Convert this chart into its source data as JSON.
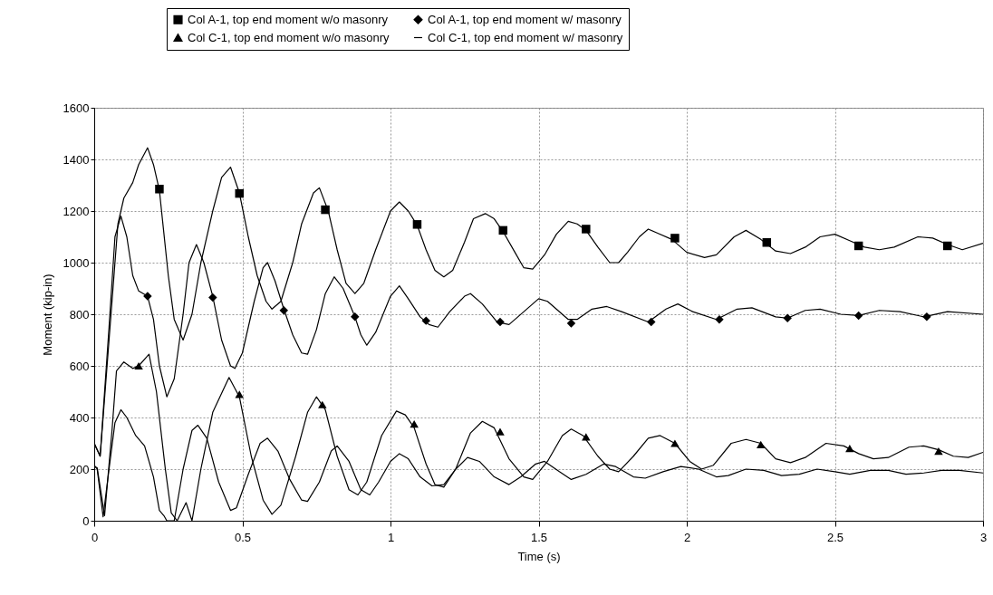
{
  "chart_data": {
    "type": "line",
    "xlabel": "Time (s)",
    "ylabel": "Moment (kip-in)",
    "xlim": [
      0,
      3
    ],
    "ylim": [
      0,
      1600
    ],
    "xticks": [
      0,
      0.5,
      1,
      1.5,
      2,
      2.5,
      3
    ],
    "yticks": [
      0,
      200,
      400,
      600,
      800,
      1000,
      1200,
      1400,
      1600
    ],
    "grid": true,
    "legend": "top",
    "line_style": "solid",
    "series": [
      {
        "name": "Col A-1, top end moment w/o masonry",
        "color": "#000000",
        "x": [
          0,
          0.02,
          0.05,
          0.08,
          0.1,
          0.13,
          0.15,
          0.18,
          0.2,
          0.22,
          0.25,
          0.27,
          0.3,
          0.33,
          0.36,
          0.4,
          0.43,
          0.46,
          0.49,
          0.52,
          0.55,
          0.58,
          0.6,
          0.63,
          0.67,
          0.7,
          0.74,
          0.76,
          0.79,
          0.82,
          0.85,
          0.88,
          0.91,
          0.95,
          1.0,
          1.03,
          1.06,
          1.09,
          1.12,
          1.15,
          1.18,
          1.21,
          1.25,
          1.28,
          1.32,
          1.35,
          1.38,
          1.42,
          1.45,
          1.48,
          1.52,
          1.56,
          1.6,
          1.63,
          1.66,
          1.7,
          1.74,
          1.77,
          1.8,
          1.84,
          1.87,
          1.9,
          1.95,
          2.0,
          2.06,
          2.1,
          2.16,
          2.2,
          2.25,
          2.3,
          2.35,
          2.4,
          2.45,
          2.5,
          2.55,
          2.6,
          2.65,
          2.7,
          2.78,
          2.83,
          2.88,
          2.93,
          3.0
        ],
        "values": [
          300,
          250,
          700,
          1150,
          1250,
          1310,
          1380,
          1445,
          1380,
          1280,
          950,
          780,
          700,
          800,
          1000,
          1200,
          1330,
          1370,
          1270,
          1100,
          950,
          850,
          820,
          850,
          1000,
          1150,
          1270,
          1290,
          1200,
          1050,
          920,
          880,
          920,
          1050,
          1200,
          1235,
          1200,
          1145,
          1050,
          970,
          945,
          970,
          1080,
          1170,
          1190,
          1170,
          1120,
          1040,
          980,
          975,
          1030,
          1110,
          1160,
          1150,
          1125,
          1060,
          1000,
          1000,
          1040,
          1100,
          1130,
          1115,
          1090,
          1040,
          1020,
          1030,
          1100,
          1125,
          1090,
          1045,
          1035,
          1060,
          1100,
          1110,
          1085,
          1060,
          1050,
          1060,
          1100,
          1095,
          1070,
          1050,
          1075
        ]
      },
      {
        "name": "Col A-1, top end moment w/ masonry",
        "color": "#000000",
        "x": [
          0,
          0.02,
          0.05,
          0.07,
          0.09,
          0.11,
          0.13,
          0.15,
          0.18,
          0.2,
          0.22,
          0.245,
          0.27,
          0.3,
          0.32,
          0.345,
          0.37,
          0.4,
          0.43,
          0.46,
          0.475,
          0.5,
          0.54,
          0.57,
          0.585,
          0.61,
          0.64,
          0.67,
          0.7,
          0.72,
          0.75,
          0.78,
          0.81,
          0.84,
          0.88,
          0.9,
          0.92,
          0.95,
          1.0,
          1.03,
          1.06,
          1.1,
          1.13,
          1.16,
          1.2,
          1.25,
          1.27,
          1.31,
          1.36,
          1.4,
          1.43,
          1.5,
          1.53,
          1.6,
          1.63,
          1.68,
          1.73,
          1.78,
          1.87,
          1.93,
          1.97,
          2.02,
          2.1,
          2.17,
          2.22,
          2.3,
          2.34,
          2.4,
          2.45,
          2.52,
          2.58,
          2.65,
          2.72,
          2.8,
          2.88,
          3.0
        ],
        "values": [
          300,
          250,
          750,
          1100,
          1180,
          1100,
          950,
          890,
          870,
          780,
          600,
          480,
          550,
          800,
          1000,
          1070,
          1000,
          870,
          700,
          600,
          590,
          650,
          850,
          980,
          1000,
          930,
          820,
          720,
          650,
          645,
          740,
          880,
          945,
          900,
          790,
          720,
          680,
          730,
          870,
          910,
          860,
          790,
          760,
          750,
          810,
          870,
          880,
          840,
          770,
          760,
          790,
          860,
          850,
          780,
          780,
          820,
          830,
          810,
          770,
          820,
          840,
          810,
          780,
          820,
          825,
          790,
          785,
          815,
          820,
          800,
          795,
          815,
          810,
          790,
          810,
          800
        ]
      },
      {
        "name": "Col C-1, top end moment w/o masonry",
        "color": "#000000",
        "x": [
          0,
          0.01,
          0.035,
          0.06,
          0.075,
          0.1,
          0.13,
          0.15,
          0.185,
          0.21,
          0.24,
          0.26,
          0.28,
          0.31,
          0.33,
          0.36,
          0.4,
          0.455,
          0.49,
          0.53,
          0.57,
          0.6,
          0.63,
          0.68,
          0.72,
          0.75,
          0.78,
          0.82,
          0.86,
          0.89,
          0.92,
          0.97,
          1.02,
          1.05,
          1.08,
          1.12,
          1.15,
          1.18,
          1.22,
          1.27,
          1.31,
          1.35,
          1.4,
          1.45,
          1.48,
          1.53,
          1.58,
          1.61,
          1.65,
          1.7,
          1.74,
          1.77,
          1.82,
          1.87,
          1.91,
          1.96,
          2.01,
          2.05,
          2.09,
          2.15,
          2.2,
          2.25,
          2.3,
          2.35,
          2.4,
          2.47,
          2.53,
          2.58,
          2.63,
          2.68,
          2.75,
          2.8,
          2.85,
          2.9,
          2.95,
          3.0
        ],
        "values": [
          210,
          205,
          20,
          350,
          580,
          615,
          590,
          600,
          645,
          500,
          200,
          30,
          0,
          70,
          0,
          200,
          420,
          555,
          480,
          250,
          80,
          25,
          60,
          250,
          420,
          480,
          430,
          250,
          120,
          100,
          150,
          330,
          425,
          410,
          360,
          220,
          140,
          130,
          200,
          340,
          385,
          360,
          240,
          170,
          160,
          230,
          330,
          355,
          330,
          250,
          200,
          190,
          250,
          320,
          330,
          300,
          230,
          200,
          215,
          300,
          315,
          300,
          240,
          225,
          245,
          300,
          290,
          260,
          240,
          245,
          285,
          290,
          275,
          250,
          245,
          265
        ]
      },
      {
        "name": "Col C-1, top end moment w/ masonry",
        "color": "#000000",
        "x": [
          0,
          0.01,
          0.03,
          0.05,
          0.07,
          0.09,
          0.11,
          0.14,
          0.17,
          0.2,
          0.22,
          0.235,
          0.245,
          0.27,
          0.3,
          0.33,
          0.35,
          0.38,
          0.42,
          0.46,
          0.48,
          0.52,
          0.56,
          0.585,
          0.62,
          0.66,
          0.7,
          0.72,
          0.76,
          0.8,
          0.82,
          0.86,
          0.9,
          0.93,
          0.96,
          1.0,
          1.03,
          1.06,
          1.1,
          1.14,
          1.18,
          1.22,
          1.26,
          1.3,
          1.35,
          1.4,
          1.44,
          1.49,
          1.52,
          1.57,
          1.61,
          1.66,
          1.72,
          1.76,
          1.82,
          1.86,
          1.92,
          1.98,
          2.04,
          2.1,
          2.14,
          2.2,
          2.26,
          2.32,
          2.38,
          2.44,
          2.5,
          2.55,
          2.62,
          2.68,
          2.74,
          2.8,
          2.86,
          2.92,
          3.0
        ],
        "values": [
          215,
          200,
          15,
          200,
          380,
          430,
          400,
          330,
          290,
          170,
          40,
          20,
          0,
          0,
          200,
          350,
          370,
          320,
          150,
          40,
          50,
          180,
          300,
          320,
          270,
          160,
          80,
          75,
          150,
          270,
          290,
          230,
          120,
          100,
          150,
          230,
          260,
          240,
          170,
          135,
          140,
          200,
          245,
          230,
          170,
          140,
          170,
          220,
          230,
          190,
          160,
          180,
          220,
          210,
          170,
          165,
          190,
          210,
          200,
          170,
          175,
          200,
          195,
          175,
          180,
          200,
          190,
          180,
          195,
          195,
          180,
          185,
          195,
          195,
          185
        ]
      },
      {
        "type": "scatter",
        "color": "#000000",
        "marker": "square",
        "x": [
          0.22,
          0.49,
          0.78,
          1.09,
          1.38,
          1.66,
          1.96,
          2.27,
          2.58,
          2.88
        ],
        "values": [
          1285,
          1268,
          1205,
          1148,
          1125,
          1130,
          1095,
          1078,
          1065,
          1065
        ]
      },
      {
        "type": "scatter",
        "color": "#000000",
        "marker": "diamond",
        "x": [
          0.18,
          0.4,
          0.64,
          0.88,
          1.12,
          1.37,
          1.61,
          1.88,
          2.11,
          2.34,
          2.58,
          2.81
        ],
        "values": [
          870,
          865,
          815,
          790,
          775,
          770,
          765,
          770,
          780,
          785,
          795,
          790
        ]
      },
      {
        "type": "scatter",
        "color": "#000000",
        "marker": "triangle",
        "x": [
          0.15,
          0.49,
          0.77,
          1.08,
          1.37,
          1.66,
          1.96,
          2.25,
          2.55,
          2.85
        ],
        "values": [
          600,
          490,
          450,
          375,
          345,
          325,
          300,
          295,
          280,
          270
        ]
      }
    ]
  }
}
